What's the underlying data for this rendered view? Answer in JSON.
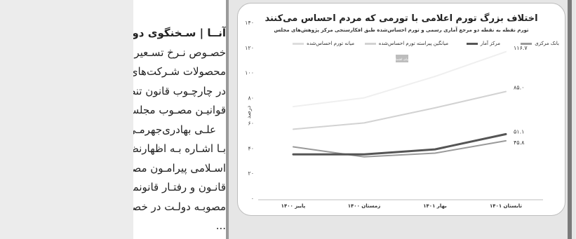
{
  "article": {
    "lines": [
      {
        "text": "آنــا | سـخنگوی دولت",
        "bold": true
      },
      {
        "text": "خصـوص نـرخ تسـعیر ارز ج"
      },
      {
        "text": "محصولات شـرکت‌های پالایـ"
      },
      {
        "text": "در چارچـوب قانون تنظیـم ب"
      },
      {
        "text": "قوانیـن مصـوب مجلس محت"
      },
      {
        "text": "علـی بهادری‌جهرمـی سـخ"
      },
      {
        "text": "بـا اشـاره بـه اظهارنظر هیئـت"
      },
      {
        "text": "اسـلامی پیرامـون مصوبـه ار"
      },
      {
        "text": "قانـون و رفتـار قانونمنـد از افت"
      },
      {
        "text": "مصوبـه دولـت در خصـوص"
      },
      {
        "text": "..."
      }
    ]
  },
  "chart_data": {
    "type": "line",
    "title": "اختلاف بزرگ تورم اعلامی با تورمی که مردم احساس می‌کنند",
    "subtitle": "تورم نقطه به نقطه دو مرجع آماری رسمی و تورم احساس‌شده طبق افکارسنجی مرکز پژوهش‌های مجلس",
    "ylabel": "درصد",
    "ylim": [
      0,
      140
    ],
    "yticks": [
      "۰",
      "۲۰",
      "۴۰",
      "۶۰",
      "۸۰",
      "۱۰۰",
      "۱۲۰",
      "۱۴۰"
    ],
    "categories": [
      "پاییز ۱۴۰۰",
      "زمستان ۱۴۰۰",
      "بهار ۱۴۰۱",
      "تابستان ۱۴۰۱"
    ],
    "series": [
      {
        "name": "بانک مرکزی",
        "values": [
          41,
          33,
          36,
          45.8
        ],
        "color": "#9a9a9a",
        "width": 2
      },
      {
        "name": "مرکز آمار",
        "values": [
          35,
          35,
          39,
          51.1
        ],
        "color": "#555555",
        "width": 3
      },
      {
        "name": "میانگین پیراسته تورم احساس‌شده",
        "values": [
          55,
          60,
          72,
          85
        ],
        "color": "#d2d2d2",
        "width": 2
      },
      {
        "name": "میانه تورم احساس‌شده",
        "values": [
          73,
          80,
          97,
          116.7
        ],
        "color": "#efefef",
        "width": 2
      }
    ],
    "end_labels": [
      {
        "series": 3,
        "text": "۱۱۶.۷"
      },
      {
        "series": 2,
        "text": "۸۵.۰"
      },
      {
        "series": 1,
        "text": "۵۱.۱"
      },
      {
        "series": 0,
        "text": "۴۵.۸"
      }
    ],
    "logo_text": "دنیای اقتصاد",
    "grid": false
  }
}
